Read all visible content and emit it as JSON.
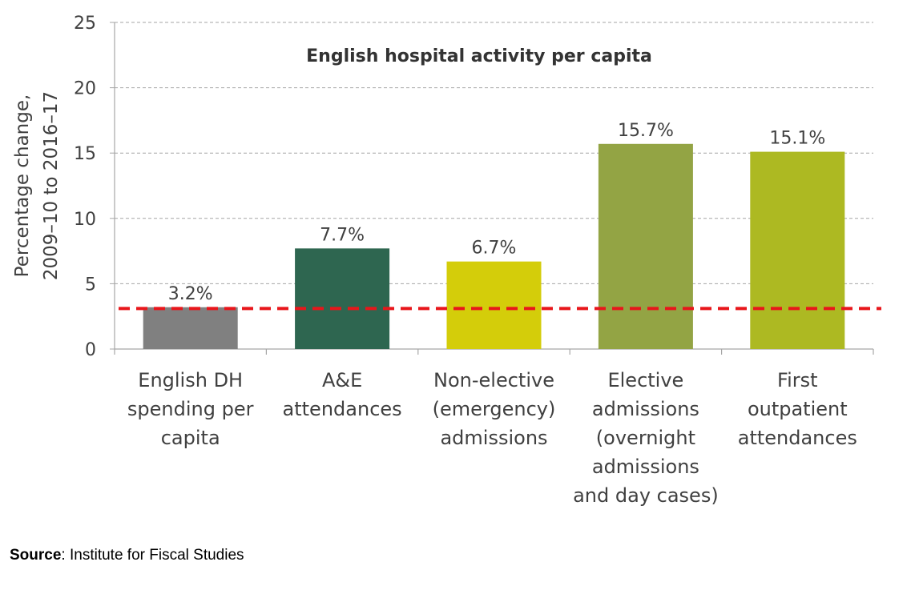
{
  "chart_data": {
    "type": "bar",
    "title": "English hospital activity per capita",
    "ylabel": [
      "Percentage change,",
      "2009–10 to 2016–17"
    ],
    "xlabel": "",
    "ylim": [
      0,
      25
    ],
    "yticks": [
      0,
      5,
      10,
      15,
      20,
      25
    ],
    "grid": true,
    "categories": [
      [
        "English DH",
        "spending per",
        "capita"
      ],
      [
        "A&E",
        "attendances"
      ],
      [
        "Non-elective",
        "(emergency)",
        "admissions"
      ],
      [
        "Elective",
        "admissions",
        "(overnight",
        "admissions",
        "and day cases)"
      ],
      [
        "First",
        "outpatient",
        "attendances"
      ]
    ],
    "values": [
      3.2,
      7.7,
      6.7,
      15.7,
      15.1
    ],
    "data_labels": [
      "3.2%",
      "7.7%",
      "6.7%",
      "15.7%",
      "15.1%"
    ],
    "colors": [
      "#808080",
      "#2e6650",
      "#d4cd0a",
      "#93a444",
      "#adb922"
    ],
    "reference_line": {
      "value": 3.1,
      "color": "#e8161b",
      "style": "dashed"
    }
  },
  "source": {
    "label": "Source",
    "text": ": Institute for Fiscal Studies"
  }
}
